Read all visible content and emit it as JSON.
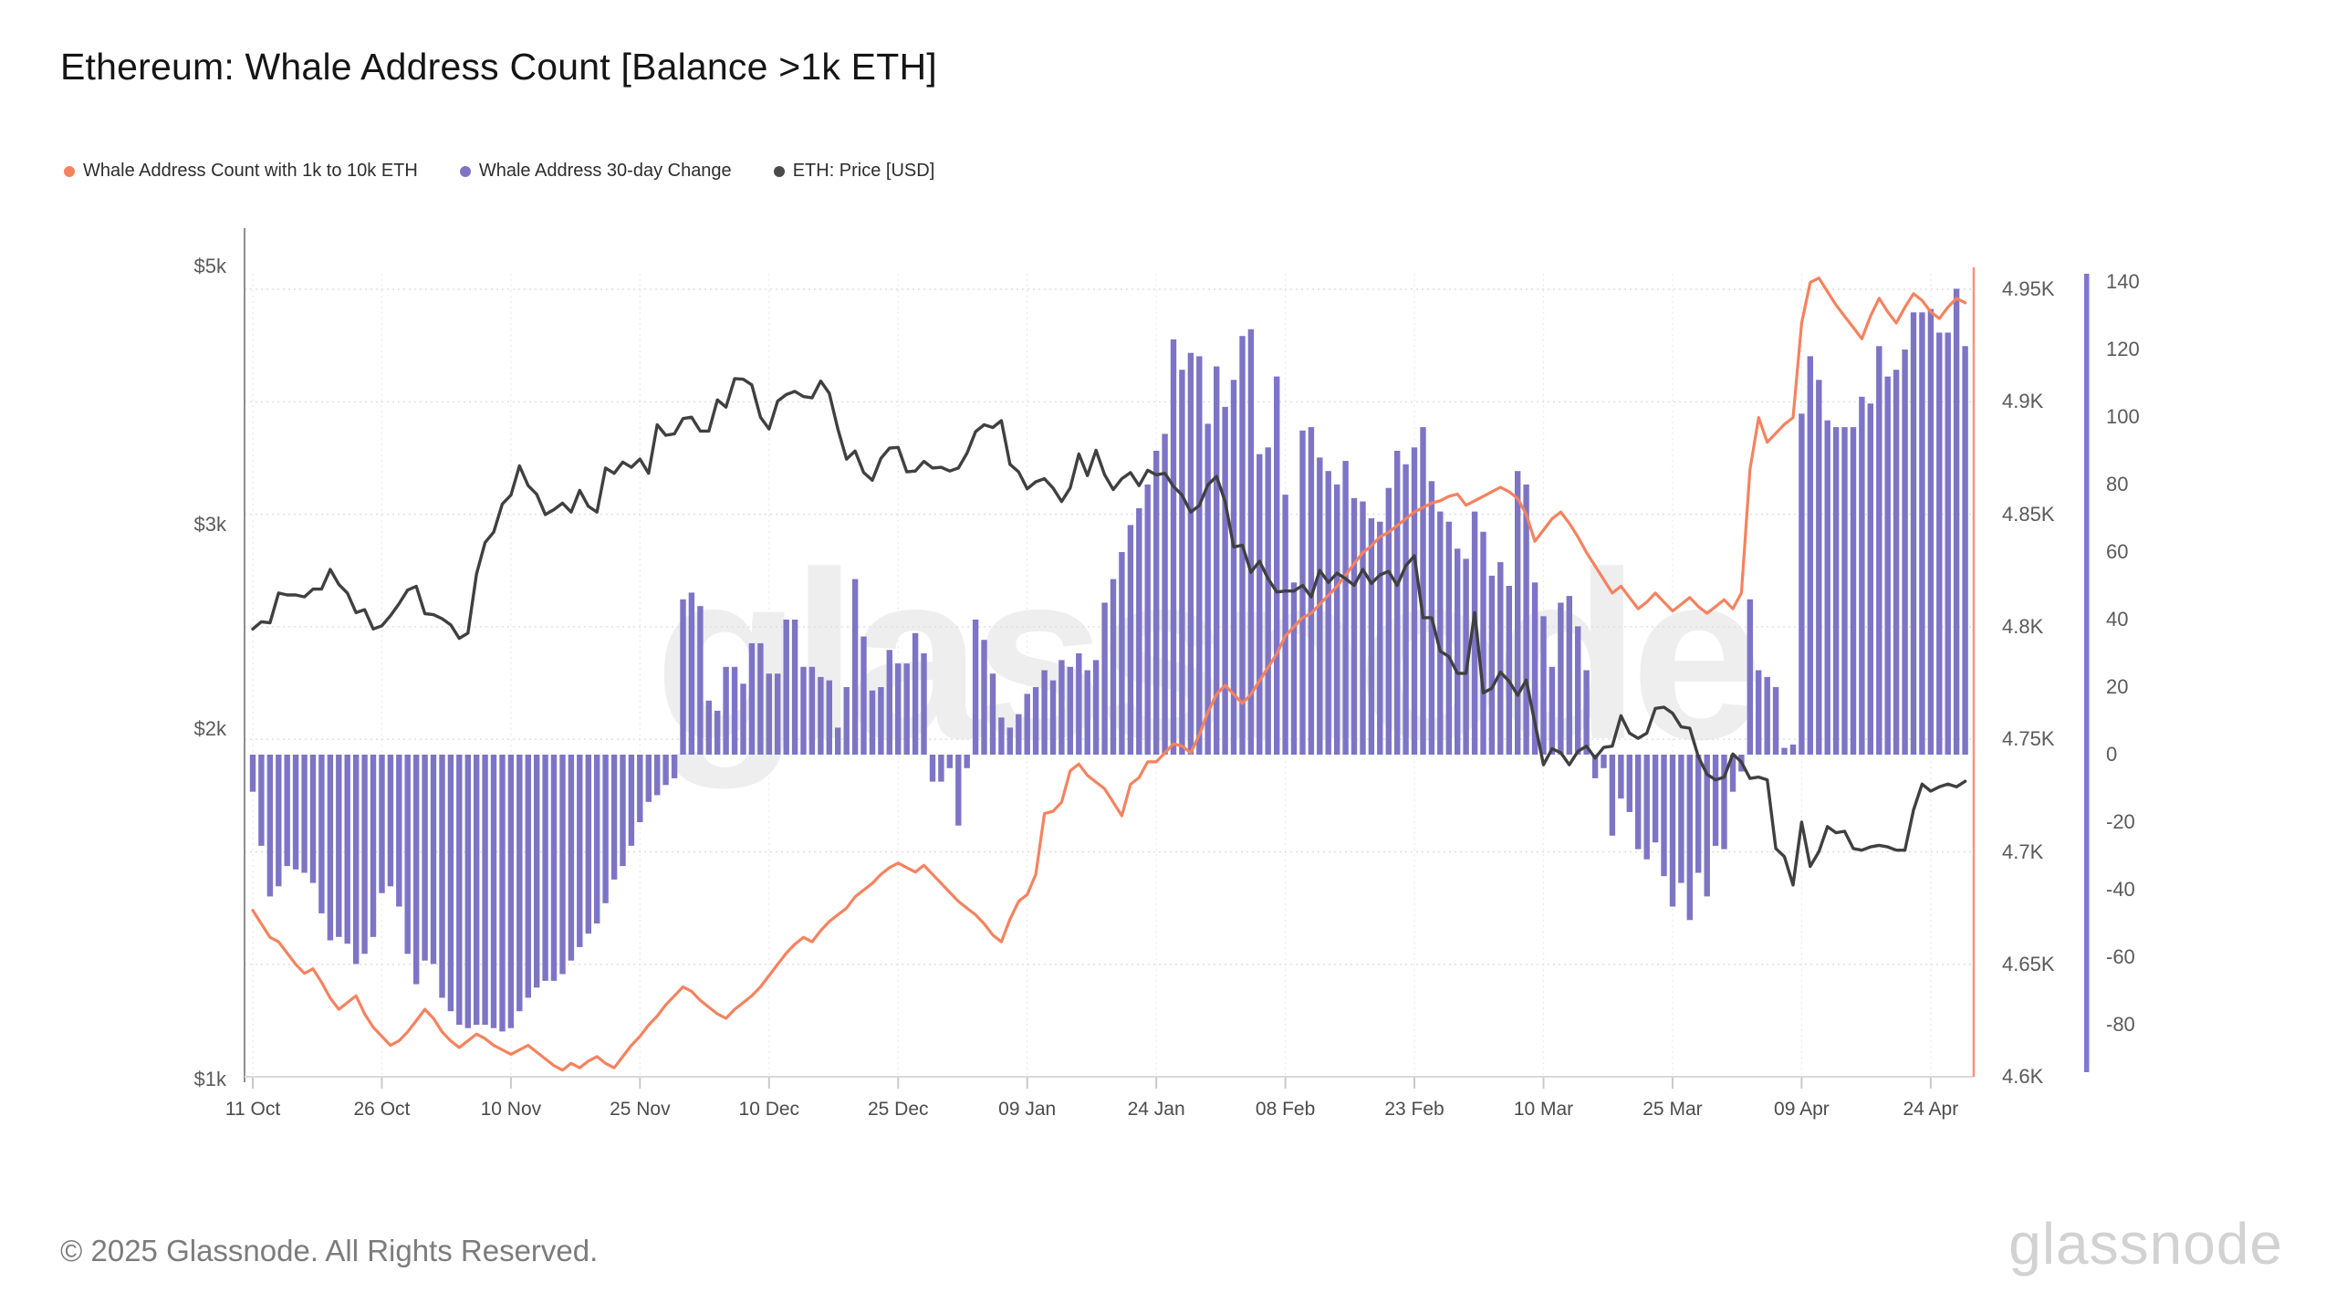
{
  "page": {
    "title": "Ethereum: Whale Address Count [Balance >1k ETH]",
    "footer": "© 2025 Glassnode. All Rights Reserved.",
    "watermark": "glassnode",
    "brand_logo": "glassnode"
  },
  "chart_data": {
    "type": "mixed-bar-line",
    "title": "Ethereum: Whale Address Count [Balance >1k ETH]",
    "grid": "horizontal-dotted",
    "legend_position": "top-left",
    "x_start_label": "11 Oct",
    "x_total_days": 200,
    "x_tick_labels": [
      "11 Oct",
      "26 Oct",
      "10 Nov",
      "25 Nov",
      "10 Dec",
      "25 Dec",
      "09 Jan",
      "24 Jan",
      "08 Feb",
      "23 Feb",
      "10 Mar",
      "25 Mar",
      "09 Apr",
      "24 Apr"
    ],
    "x_tick_day_offsets": [
      0,
      15,
      30,
      45,
      60,
      75,
      90,
      105,
      120,
      135,
      150,
      165,
      180,
      195
    ],
    "left_price_axis": {
      "scale": "log",
      "tick_labels": [
        "$5k",
        "$3k",
        "$2k",
        "$1k"
      ],
      "tick_values": [
        5000,
        3000,
        2000,
        1000
      ]
    },
    "right_count_axis": {
      "tick_labels": [
        "4.95K",
        "4.9K",
        "4.85K",
        "4.8K",
        "4.75K",
        "4.7K",
        "4.65K",
        "4.6K"
      ],
      "tick_values": [
        4950,
        4900,
        4850,
        4800,
        4750,
        4700,
        4650,
        4600
      ]
    },
    "right_change_axis": {
      "tick_labels": [
        "140",
        "120",
        "100",
        "80",
        "60",
        "40",
        "20",
        "0",
        "-20",
        "-40",
        "-60",
        "-80"
      ],
      "tick_values": [
        140,
        120,
        100,
        80,
        60,
        40,
        20,
        0,
        -20,
        -40,
        -60,
        -80
      ]
    },
    "series": [
      {
        "name": "Whale Address Count with 1k to 10k ETH",
        "type": "line",
        "axis": "count",
        "color": "#F5825E",
        "values": [
          4674,
          4668,
          4662,
          4660,
          4655,
          4650,
          4646,
          4648,
          4642,
          4635,
          4630,
          4633,
          4636,
          4628,
          4622,
          4618,
          4614,
          4616,
          4620,
          4625,
          4630,
          4626,
          4620,
          4616,
          4613,
          4616,
          4619,
          4617,
          4614,
          4612,
          4610,
          4612,
          4614,
          4611,
          4608,
          4605,
          4603,
          4606,
          4604,
          4607,
          4609,
          4606,
          4604,
          4609,
          4614,
          4618,
          4623,
          4627,
          4632,
          4636,
          4640,
          4638,
          4634,
          4631,
          4628,
          4626,
          4630,
          4633,
          4636,
          4640,
          4645,
          4650,
          4655,
          4659,
          4662,
          4660,
          4665,
          4669,
          4672,
          4675,
          4680,
          4683,
          4686,
          4690,
          4693,
          4695,
          4693,
          4691,
          4694,
          4690,
          4686,
          4682,
          4678,
          4675,
          4672,
          4668,
          4663,
          4660,
          4670,
          4678,
          4681,
          4690,
          4717,
          4718,
          4722,
          4736,
          4739,
          4734,
          4731,
          4728,
          4722,
          4716,
          4730,
          4733,
          4740,
          4740,
          4744,
          4748,
          4747,
          4744,
          4752,
          4762,
          4770,
          4774,
          4770,
          4766,
          4770,
          4776,
          4782,
          4788,
          4796,
          4800,
          4804,
          4806,
          4810,
          4814,
          4818,
          4823,
          4828,
          4833,
          4836,
          4840,
          4842,
          4845,
          4848,
          4851,
          4853,
          4855,
          4856,
          4858,
          4859,
          4854,
          4856,
          4858,
          4860,
          4862,
          4860,
          4857,
          4850,
          4838,
          4843,
          4848,
          4851,
          4846,
          4840,
          4833,
          4827,
          4821,
          4815,
          4818,
          4813,
          4808,
          4811,
          4815,
          4811,
          4807,
          4810,
          4813,
          4809,
          4806,
          4809,
          4812,
          4808,
          4815,
          4870,
          4893,
          4882,
          4886,
          4890,
          4893,
          4935,
          4953,
          4955,
          4949,
          4943,
          4938,
          4933,
          4928,
          4938,
          4946,
          4940,
          4935,
          4942,
          4948,
          4945,
          4940,
          4937,
          4942,
          4946,
          4944
        ]
      },
      {
        "name": "Whale Address 30-day Change",
        "type": "bar",
        "axis": "change",
        "color": "#7E74C6",
        "values": [
          -11,
          -27,
          -42,
          -39,
          -33,
          -34,
          -35,
          -38,
          -47,
          -55,
          -54,
          -56,
          -62,
          -59,
          -54,
          -41,
          -39,
          -45,
          -59,
          -68,
          -61,
          -62,
          -72,
          -76,
          -80,
          -81,
          -80,
          -80,
          -81,
          -82,
          -81,
          -76,
          -72,
          -69,
          -67,
          -67,
          -65,
          -61,
          -57,
          -53,
          -50,
          -44,
          -37,
          -33,
          -27,
          -20,
          -14,
          -12,
          -9,
          -7,
          46,
          48,
          44,
          16,
          13,
          26,
          26,
          21,
          33,
          33,
          24,
          24,
          40,
          40,
          26,
          26,
          23,
          22,
          8,
          20,
          52,
          35,
          19,
          20,
          31,
          27,
          27,
          36,
          30,
          -8,
          -8,
          -4,
          -21,
          -4,
          40,
          34,
          24,
          11,
          8,
          12,
          18,
          20,
          25,
          22,
          28,
          26,
          30,
          25,
          28,
          45,
          52,
          60,
          68,
          73,
          80,
          90,
          95,
          123,
          114,
          119,
          118,
          98,
          115,
          103,
          111,
          124,
          126,
          89,
          91,
          112,
          77,
          51,
          96,
          97,
          88,
          84,
          80,
          87,
          76,
          75,
          70,
          69,
          79,
          90,
          86,
          91,
          97,
          81,
          72,
          69,
          61,
          58,
          72,
          66,
          53,
          57,
          50,
          84,
          80,
          51,
          41,
          26,
          45,
          47,
          38,
          25,
          -7,
          -4,
          -24,
          -13,
          -17,
          -28,
          -31,
          -26,
          -36,
          -45,
          -38,
          -49,
          -35,
          -42,
          -27,
          -28,
          -11,
          -5,
          46,
          25,
          23,
          20,
          2,
          3,
          101,
          118,
          111,
          99,
          97,
          97,
          97,
          106,
          104,
          121,
          112,
          114,
          120,
          131,
          131,
          132,
          125,
          125,
          138,
          121
        ]
      },
      {
        "name": "ETH: Price [USD]",
        "type": "line",
        "axis": "price",
        "color": "#404040",
        "values": [
          2440,
          2475,
          2470,
          2620,
          2610,
          2610,
          2600,
          2640,
          2640,
          2745,
          2665,
          2620,
          2520,
          2535,
          2440,
          2455,
          2505,
          2565,
          2635,
          2655,
          2515,
          2510,
          2490,
          2460,
          2395,
          2420,
          2720,
          2895,
          2955,
          3125,
          3180,
          3370,
          3240,
          3185,
          3060,
          3090,
          3130,
          3075,
          3210,
          3110,
          3075,
          3355,
          3320,
          3395,
          3360,
          3415,
          3320,
          3655,
          3580,
          3590,
          3700,
          3710,
          3610,
          3610,
          3840,
          3785,
          4005,
          4000,
          3955,
          3710,
          3625,
          3830,
          3880,
          3905,
          3865,
          3855,
          3985,
          3890,
          3625,
          3415,
          3470,
          3325,
          3275,
          3420,
          3490,
          3495,
          3330,
          3335,
          3400,
          3355,
          3360,
          3335,
          3355,
          3455,
          3605,
          3655,
          3635,
          3685,
          3380,
          3330,
          3220,
          3265,
          3285,
          3225,
          3140,
          3225,
          3450,
          3305,
          3475,
          3310,
          3215,
          3285,
          3325,
          3240,
          3340,
          3310,
          3320,
          3235,
          3180,
          3075,
          3115,
          3245,
          3300,
          3140,
          2870,
          2880,
          2730,
          2790,
          2695,
          2625,
          2630,
          2630,
          2660,
          2600,
          2740,
          2675,
          2725,
          2695,
          2660,
          2745,
          2670,
          2715,
          2735,
          2660,
          2765,
          2820,
          2495,
          2495,
          2335,
          2310,
          2235,
          2235,
          2520,
          2150,
          2170,
          2240,
          2200,
          2140,
          2205,
          2025,
          1865,
          1925,
          1910,
          1865,
          1915,
          1935,
          1890,
          1930,
          1935,
          2055,
          1985,
          1965,
          1985,
          2085,
          2090,
          2065,
          2010,
          2005,
          1895,
          1830,
          1810,
          1820,
          1905,
          1875,
          1815,
          1820,
          1810,
          1580,
          1555,
          1470,
          1665,
          1525,
          1570,
          1650,
          1630,
          1635,
          1580,
          1575,
          1585,
          1590,
          1585,
          1575,
          1575,
          1705,
          1795,
          1770,
          1785,
          1795,
          1785,
          1805
        ]
      }
    ]
  }
}
